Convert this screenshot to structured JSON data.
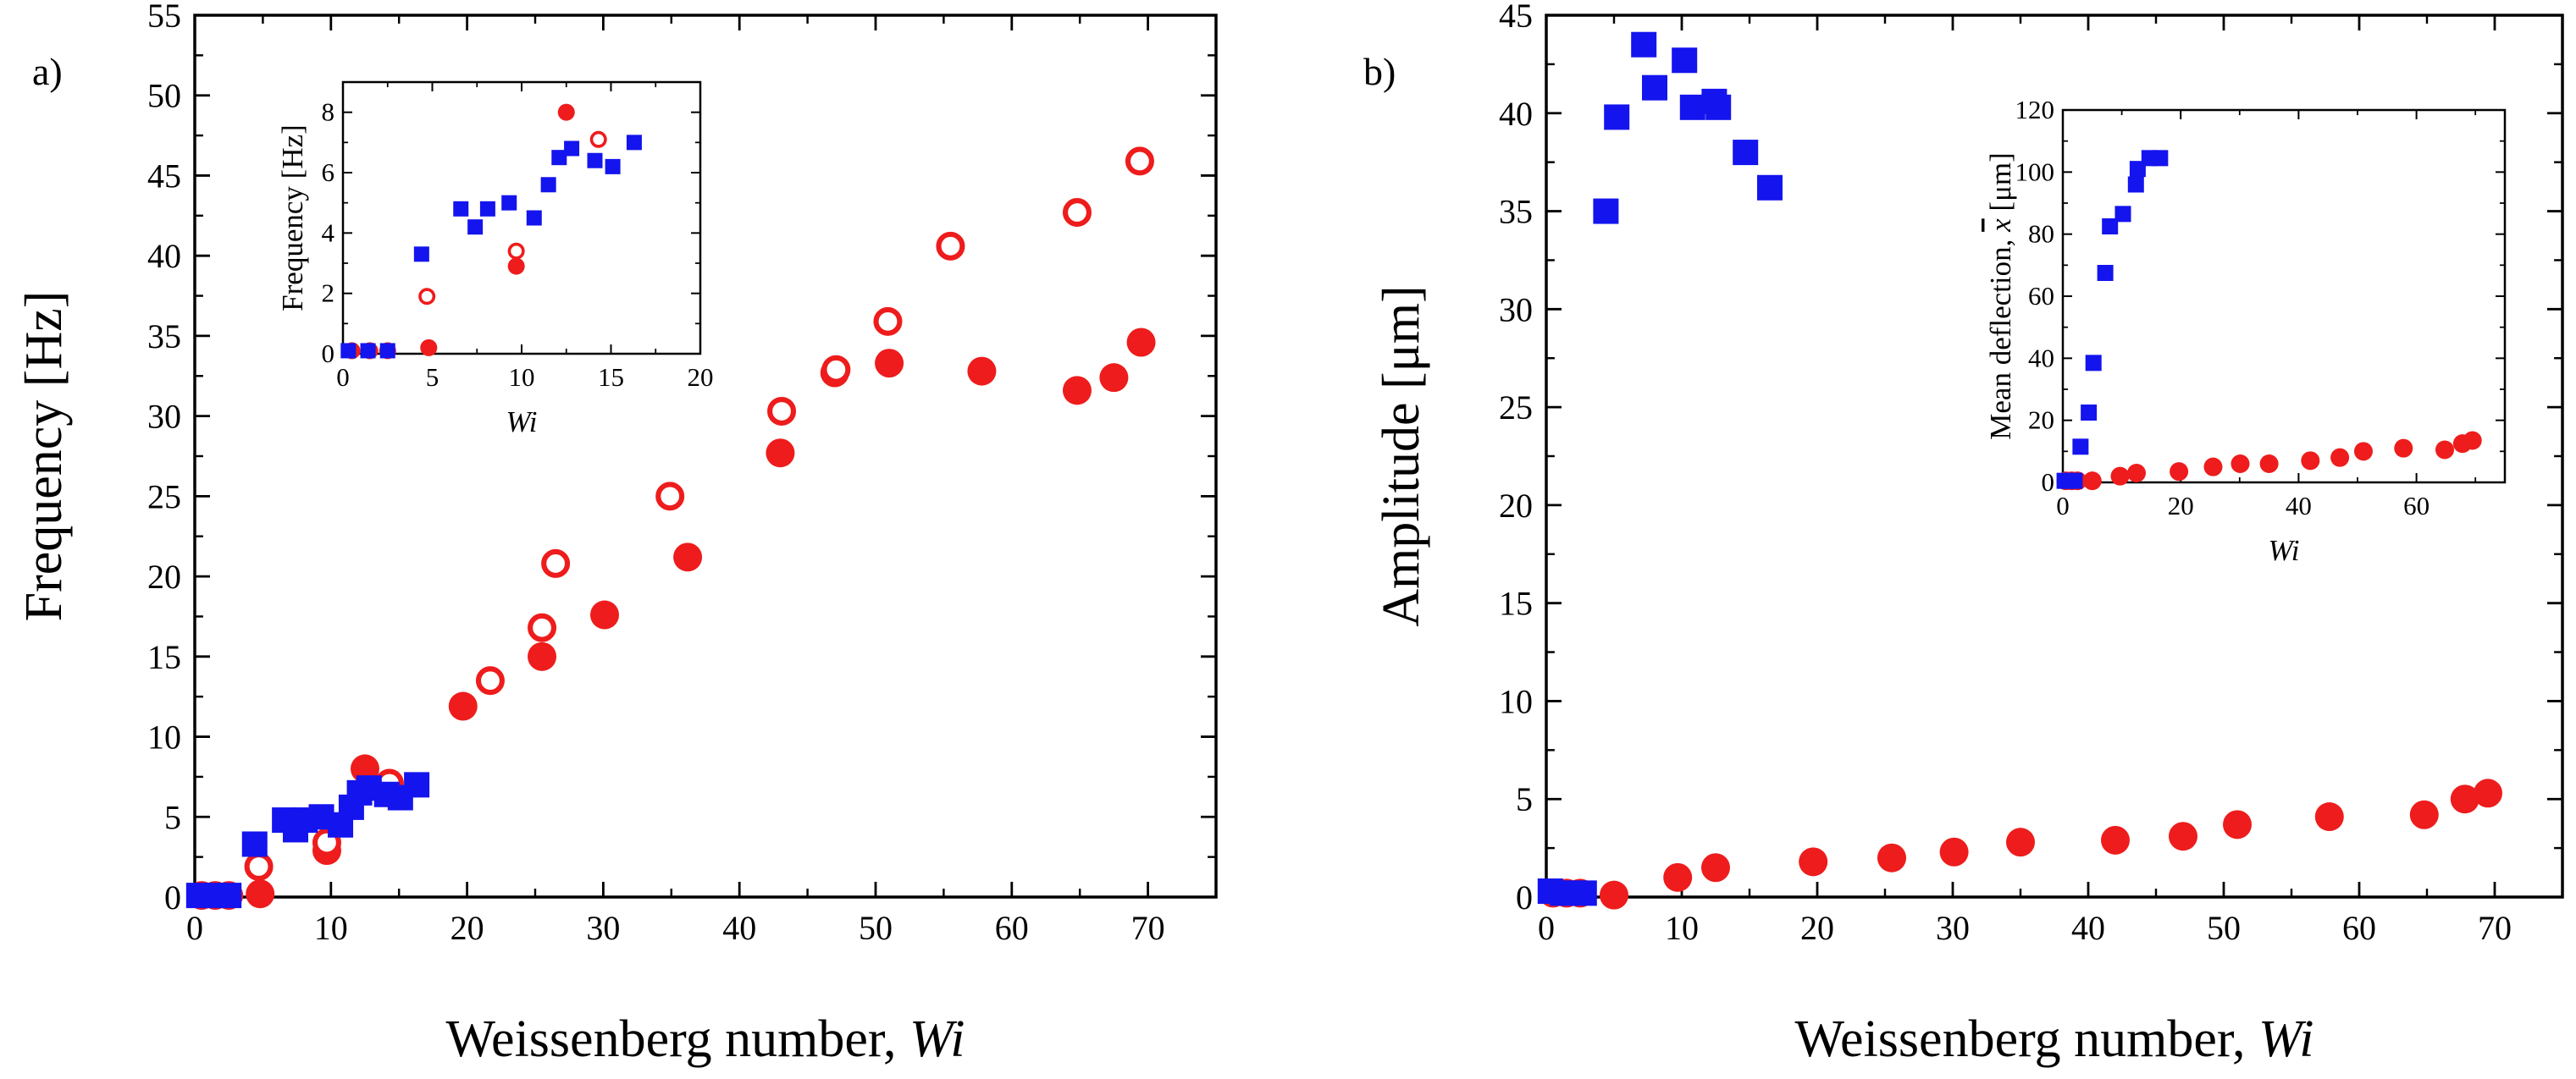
{
  "colors": {
    "open_closed_marker": "#ee1c1c",
    "square_marker": "#1414ee",
    "axis": "#000000"
  },
  "chart_data": [
    {
      "type": "scatter",
      "panel_label": "a)",
      "xlabel_prefix": "Weissenberg number, ",
      "xlabel_var": "Wi",
      "ylabel": "Frequency [Hz]",
      "xlim": [
        0,
        75
      ],
      "ylim": [
        0,
        55
      ],
      "xticks": [
        "0",
        "10",
        "20",
        "30",
        "40",
        "50",
        "60",
        "70"
      ],
      "yticks": [
        "0",
        "5",
        "10",
        "15",
        "20",
        "25",
        "30",
        "35",
        "40",
        "45",
        "50",
        "55"
      ],
      "series": [
        {
          "name": "filled circles",
          "marker": "circle-filled",
          "color": "#ee1c1c",
          "x": [
            0.5,
            1.5,
            2.5,
            4.8,
            9.7,
            12.5,
            19.7,
            25.5,
            30.1,
            36.2,
            43,
            47,
            51,
            57.8,
            64.8,
            67.5,
            69.5
          ],
          "y": [
            0.1,
            0.1,
            0.1,
            0.2,
            2.9,
            8.0,
            11.9,
            15.0,
            17.6,
            21.2,
            27.7,
            32.7,
            33.3,
            32.8,
            31.6,
            32.4,
            34.6
          ]
        },
        {
          "name": "open circles",
          "marker": "circle-open",
          "color": "#ee1c1c",
          "x": [
            4.7,
            9.7,
            14.3,
            21.7,
            25.5,
            26.5,
            34.9,
            43.1,
            47.1,
            50.9,
            55.5,
            64.8,
            69.4
          ],
          "y": [
            1.9,
            3.4,
            7.1,
            13.5,
            16.8,
            20.8,
            25.0,
            30.3,
            32.9,
            35.9,
            40.6,
            42.7,
            45.9
          ]
        },
        {
          "name": "squares",
          "marker": "square-filled",
          "color": "#1414ee",
          "x": [
            0.3,
            1.4,
            2.5,
            4.4,
            6.6,
            7.4,
            8.1,
            9.3,
            10.7,
            11.5,
            12.1,
            12.8,
            14.1,
            15.1,
            16.3
          ],
          "y": [
            0.1,
            0.1,
            0.1,
            3.3,
            4.8,
            4.2,
            4.8,
            5.0,
            4.5,
            5.6,
            6.5,
            6.8,
            6.4,
            6.2,
            7.0
          ]
        }
      ],
      "inset": {
        "xlabel": "Wi",
        "ylabel": "Frequency [Hz]",
        "xlim": [
          0,
          20
        ],
        "ylim": [
          0,
          9
        ],
        "xticks": [
          "0",
          "5",
          "10",
          "15",
          "20"
        ],
        "yticks": [
          "0",
          "2",
          "4",
          "6",
          "8"
        ],
        "series": [
          {
            "name": "filled circles",
            "marker": "circle-filled",
            "color": "#ee1c1c",
            "x": [
              0.5,
              1.5,
              2.5,
              4.8,
              9.7,
              12.5
            ],
            "y": [
              0.1,
              0.1,
              0.1,
              0.2,
              2.9,
              8.0
            ]
          },
          {
            "name": "open circles",
            "marker": "circle-open",
            "color": "#ee1c1c",
            "x": [
              4.7,
              9.7,
              14.3
            ],
            "y": [
              1.9,
              3.4,
              7.1
            ]
          },
          {
            "name": "squares",
            "marker": "square-filled",
            "color": "#1414ee",
            "x": [
              0.3,
              1.4,
              2.5,
              4.4,
              6.6,
              7.4,
              8.1,
              9.3,
              10.7,
              11.5,
              12.1,
              12.8,
              14.1,
              15.1,
              16.3
            ],
            "y": [
              0.1,
              0.1,
              0.1,
              3.3,
              4.8,
              4.2,
              4.8,
              5.0,
              4.5,
              5.6,
              6.5,
              6.8,
              6.4,
              6.2,
              7.0
            ]
          }
        ]
      }
    },
    {
      "type": "scatter",
      "panel_label": "b)",
      "xlabel_prefix": "Weissenberg number, ",
      "xlabel_var": "Wi",
      "ylabel": "Amplitude [μm]",
      "xlim": [
        0,
        75
      ],
      "ylim": [
        0,
        45
      ],
      "xticks": [
        "0",
        "10",
        "20",
        "30",
        "40",
        "50",
        "60",
        "70"
      ],
      "yticks": [
        "0",
        "5",
        "10",
        "15",
        "20",
        "25",
        "30",
        "35",
        "40",
        "45"
      ],
      "series": [
        {
          "name": "filled circles",
          "marker": "circle-filled",
          "color": "#ee1c1c",
          "x": [
            0.5,
            1.5,
            2.5,
            5,
            9.7,
            12.5,
            19.7,
            25.5,
            30.1,
            35,
            42,
            47,
            51,
            57.8,
            64.8,
            67.8,
            69.5
          ],
          "y": [
            0.2,
            0.2,
            0.2,
            0.1,
            1.0,
            1.5,
            1.8,
            2.0,
            2.3,
            2.8,
            2.9,
            3.1,
            3.7,
            4.1,
            4.2,
            5.0,
            5.3
          ]
        },
        {
          "name": "squares",
          "marker": "square-filled",
          "color": "#1414ee",
          "x": [
            0.3,
            1.2,
            2,
            2.8,
            4.4,
            5.2,
            7.2,
            8,
            10.2,
            10.8,
            12.4,
            12.7,
            14.7,
            16.5
          ],
          "y": [
            0.3,
            0.2,
            0.2,
            0.2,
            35.0,
            39.8,
            43.5,
            41.3,
            42.7,
            40.3,
            40.6,
            40.3,
            38.0,
            36.2
          ]
        }
      ],
      "inset": {
        "xlabel": "Wi",
        "ylabel_prefix": "Mean deflection, ",
        "ylabel_var": "x",
        "ylabel_suffix": " [μm]",
        "xlim": [
          0,
          75
        ],
        "ylim": [
          0,
          120
        ],
        "xticks": [
          "0",
          "20",
          "40",
          "60"
        ],
        "yticks": [
          "0",
          "20",
          "40",
          "60",
          "80",
          "100",
          "120"
        ],
        "series": [
          {
            "name": "filled circles",
            "marker": "circle-filled",
            "color": "#ee1c1c",
            "x": [
              0.5,
              1.5,
              2.5,
              5,
              9.7,
              12.5,
              19.7,
              25.5,
              30.1,
              35,
              42,
              47,
              51,
              57.8,
              64.8,
              67.8,
              69.5
            ],
            "y": [
              0.5,
              0.5,
              0.5,
              0.5,
              2,
              3,
              3.5,
              5,
              6,
              6,
              7,
              8,
              10,
              11,
              10.5,
              12.5,
              13.5
            ]
          },
          {
            "name": "squares",
            "marker": "square-filled",
            "color": "#1414ee",
            "x": [
              0.3,
              1,
              2,
              3,
              4.4,
              5.2,
              7.2,
              8,
              10.2,
              12.4,
              12.7,
              14.7,
              16.5
            ],
            "y": [
              0.5,
              0.5,
              0.5,
              11.5,
              22.5,
              38.5,
              67.5,
              82.5,
              86.5,
              96,
              101,
              104.5,
              104.5
            ]
          }
        ]
      }
    }
  ]
}
